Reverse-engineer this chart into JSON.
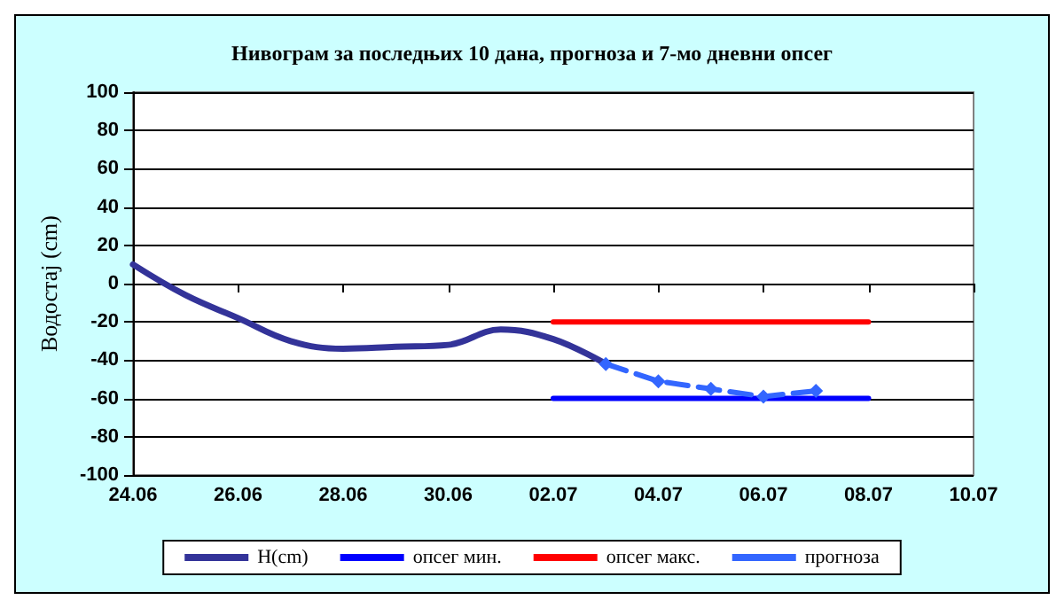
{
  "chart_data": {
    "type": "line",
    "title": "Нивограм за последњих 10 дана, прогноза и 7-мо дневни опсег",
    "ylabel": "Водостај (cm)",
    "xlim": [
      "--06-24",
      "--07-10"
    ],
    "xticks": [
      {
        "value": "--06-24",
        "label": "24.06"
      },
      {
        "value": "--06-26",
        "label": "26.06"
      },
      {
        "value": "--06-28",
        "label": "28.06"
      },
      {
        "value": "--06-30",
        "label": "30.06"
      },
      {
        "value": "--07-02",
        "label": "02.07"
      },
      {
        "value": "--07-04",
        "label": "04.07"
      },
      {
        "value": "--07-06",
        "label": "06.07"
      },
      {
        "value": "--07-08",
        "label": "08.07"
      },
      {
        "value": "--07-10",
        "label": "10.07"
      }
    ],
    "ylim": [
      -100,
      100
    ],
    "yticks": [
      -100,
      -80,
      -60,
      -40,
      -20,
      0,
      20,
      40,
      60,
      80,
      100
    ],
    "grid": "y",
    "legend": "bottom",
    "series": [
      {
        "name": "H(cm)",
        "color": "#333399",
        "marker": "none",
        "line_style": "solid",
        "x": [
          "--06-24",
          "--06-25",
          "--06-26",
          "--06-27",
          "--06-28",
          "--06-29",
          "--06-30",
          "--07-01",
          "--07-02",
          "--07-03"
        ],
        "values": [
          10,
          -6,
          -18,
          -30,
          -34,
          -33,
          -32,
          -24,
          -29,
          -42
        ]
      },
      {
        "name": "опсег мин.",
        "color": "#0000ff",
        "marker": "none",
        "line_style": "solid",
        "x": [
          "--07-02",
          "--07-08"
        ],
        "values": [
          -60,
          -60
        ]
      },
      {
        "name": "опсег макс.",
        "color": "#ff0000",
        "marker": "none",
        "line_style": "solid",
        "x": [
          "--07-02",
          "--07-08"
        ],
        "values": [
          -20,
          -20
        ]
      },
      {
        "name": "прогноза",
        "color": "#3366ff",
        "marker": "diamond",
        "line_style": "dashed",
        "x": [
          "--07-03",
          "--07-04",
          "--07-05",
          "--07-06",
          "--07-07"
        ],
        "values": [
          -42,
          -51,
          -55,
          -59,
          -56
        ]
      }
    ]
  }
}
